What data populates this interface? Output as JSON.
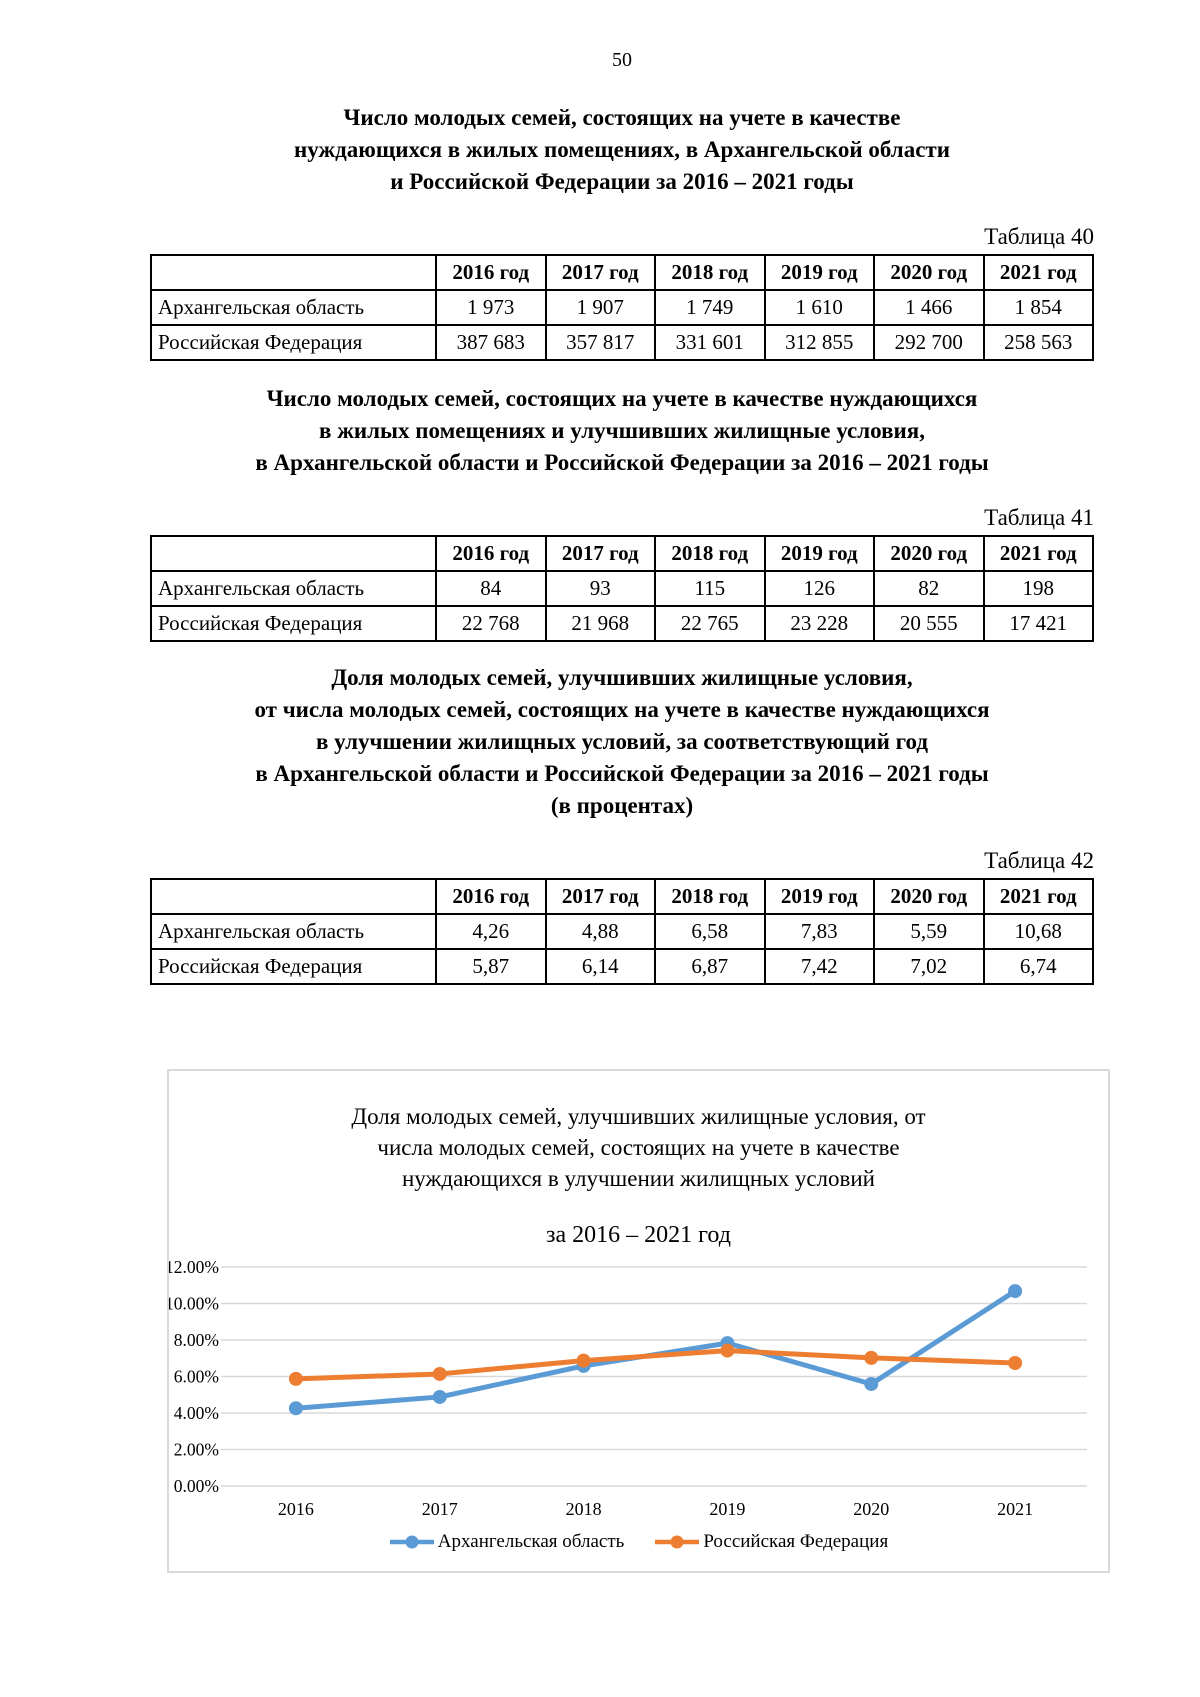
{
  "page_number": "50",
  "tables": [
    {
      "caption": "Таблица 40",
      "title_lines": [
        "Число молодых семей, состоящих на учете в качестве",
        "нуждающихся в жилых помещениях, в Архангельской области",
        "и Российской Федерации за 2016 – 2021 годы"
      ],
      "columns": [
        "2016 год",
        "2017 год",
        "2018 год",
        "2019 год",
        "2020 год",
        "2021 год"
      ],
      "rows": [
        {
          "label": "Архангельская область",
          "values": [
            "1 973",
            "1 907",
            "1 749",
            "1 610",
            "1 466",
            "1 854"
          ]
        },
        {
          "label": "Российская Федерация",
          "values": [
            "387 683",
            "357 817",
            "331 601",
            "312 855",
            "292 700",
            "258 563"
          ]
        }
      ]
    },
    {
      "caption": "Таблица 41",
      "title_lines": [
        "Число молодых семей, состоящих на учете в качестве нуждающихся",
        "в жилых помещениях и улучшивших жилищные условия,",
        "в Архангельской области и Российской Федерации за 2016 – 2021 годы"
      ],
      "columns": [
        "2016 год",
        "2017 год",
        "2018 год",
        "2019 год",
        "2020 год",
        "2021 год"
      ],
      "rows": [
        {
          "label": "Архангельская область",
          "values": [
            "84",
            "93",
            "115",
            "126",
            "82",
            "198"
          ]
        },
        {
          "label": "Российская Федерация",
          "values": [
            "22 768",
            "21 968",
            "22 765",
            "23 228",
            "20 555",
            "17 421"
          ]
        }
      ]
    },
    {
      "caption": "Таблица 42",
      "title_lines": [
        "Доля молодых семей, улучшивших жилищные условия,",
        "от числа молодых семей, состоящих на учете в качестве нуждающихся",
        "в улучшении жилищных условий, за соответствующий год",
        "в Архангельской области и Российской Федерации за 2016 – 2021 годы",
        "(в процентах)"
      ],
      "columns": [
        "2016 год",
        "2017 год",
        "2018 год",
        "2019 год",
        "2020 год",
        "2021 год"
      ],
      "rows": [
        {
          "label": "Архангельская область",
          "values": [
            "4,26",
            "4,88",
            "6,58",
            "7,83",
            "5,59",
            "10,68"
          ]
        },
        {
          "label": "Российская Федерация",
          "values": [
            "5,87",
            "6,14",
            "6,87",
            "7,42",
            "7,02",
            "6,74"
          ]
        }
      ]
    }
  ],
  "chart_data": {
    "type": "line",
    "title_lines": [
      "Доля молодых семей, улучшивших жилищные условия, от",
      "числа молодых семей, состоящих на учете в качестве",
      "нуждающихся в улучшении жилищных условий"
    ],
    "subtitle": "за 2016 – 2021 год",
    "categories": [
      "2016",
      "2017",
      "2018",
      "2019",
      "2020",
      "2021"
    ],
    "series": [
      {
        "name": "Архангельская область",
        "color": "#5B9BD5",
        "values": [
          4.26,
          4.88,
          6.58,
          7.83,
          5.59,
          10.68
        ]
      },
      {
        "name": "Российская Федерация",
        "color": "#ED7D31",
        "values": [
          5.87,
          6.14,
          6.87,
          7.42,
          7.02,
          6.74
        ]
      }
    ],
    "ylim": [
      0,
      12
    ],
    "ytick_step": 2,
    "yticks": [
      "0.00%",
      "2.00%",
      "4.00%",
      "6.00%",
      "8.00%",
      "10.00%",
      "12.00%"
    ],
    "xlabel": "",
    "ylabel": "",
    "grid": true,
    "legend_position": "bottom",
    "gridline_color": "#D9D9D9",
    "border_color": "#D9D9D9"
  }
}
